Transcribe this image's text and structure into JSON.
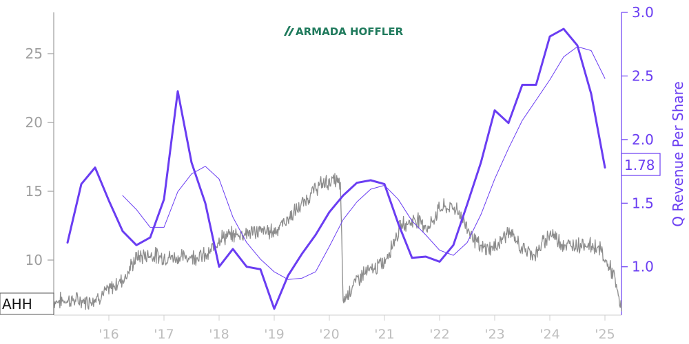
{
  "logo": {
    "text": "ARMADA HOFFLER",
    "color": "#1f7a5c"
  },
  "chart_data": {
    "type": "line",
    "ticker_label": "AHH",
    "x_ticks": [
      "'16",
      "'17",
      "'18",
      "'19",
      "'20",
      "'21",
      "'22",
      "'23",
      "'24",
      "'25"
    ],
    "x_tick_years": [
      2016,
      2017,
      2018,
      2019,
      2020,
      2021,
      2022,
      2023,
      2024,
      2025
    ],
    "xlim": [
      2015.0,
      2025.3
    ],
    "left_axis": {
      "ylim": [
        6.0,
        28.0
      ],
      "ticks": [
        "10",
        "15",
        "20",
        "25"
      ],
      "tick_values": [
        10,
        15,
        20,
        25
      ],
      "color": "#9e9e9e"
    },
    "right_axis": {
      "label": "Q Revenue Per Share",
      "ylim": [
        0.62,
        3.0
      ],
      "ticks": [
        "1.0",
        "1.5",
        "2.0",
        "2.5",
        "3.0"
      ],
      "tick_values": [
        1.0,
        1.5,
        2.0,
        2.5,
        3.0
      ],
      "color": "#6a3df2"
    },
    "last_value_label": "1.78",
    "series": [
      {
        "axis": "left",
        "color": "#8c8c8c",
        "style": "price",
        "x": [
          2015.0,
          2015.3,
          2015.6,
          2015.8,
          2016.0,
          2016.3,
          2016.5,
          2016.75,
          2017.0,
          2017.3,
          2017.6,
          2017.8,
          2018.0,
          2018.25,
          2018.5,
          2018.75,
          2019.0,
          2019.25,
          2019.5,
          2019.75,
          2019.9,
          2020.1,
          2020.2,
          2020.25,
          2020.4,
          2020.6,
          2020.8,
          2021.0,
          2021.3,
          2021.6,
          2021.8,
          2022.0,
          2022.3,
          2022.5,
          2022.75,
          2023.0,
          2023.25,
          2023.5,
          2023.75,
          2024.0,
          2024.3,
          2024.6,
          2024.9,
          2025.0,
          2025.15,
          2025.3
        ],
        "values": [
          7.0,
          7.1,
          7.0,
          7.3,
          7.8,
          8.8,
          10.2,
          10.4,
          10.2,
          10.2,
          10.3,
          10.3,
          11.6,
          11.8,
          12.0,
          12.1,
          12.1,
          13.0,
          14.0,
          15.2,
          15.6,
          15.8,
          15.5,
          7.0,
          8.0,
          9.0,
          9.3,
          9.9,
          12.5,
          13.0,
          12.3,
          13.8,
          13.8,
          12.4,
          10.8,
          10.9,
          12.1,
          10.8,
          10.4,
          12.0,
          11.0,
          11.2,
          10.9,
          10.0,
          9.0,
          6.3
        ]
      },
      {
        "axis": "right",
        "color": "#6a3df2",
        "style": "thick",
        "x": [
          2015.25,
          2015.5,
          2015.75,
          2016.0,
          2016.25,
          2016.5,
          2016.75,
          2017.0,
          2017.25,
          2017.5,
          2017.75,
          2018.0,
          2018.25,
          2018.5,
          2018.75,
          2019.0,
          2019.25,
          2019.5,
          2019.75,
          2020.0,
          2020.25,
          2020.5,
          2020.75,
          2021.0,
          2021.25,
          2021.5,
          2021.75,
          2022.0,
          2022.25,
          2022.5,
          2022.75,
          2023.0,
          2023.25,
          2023.5,
          2023.75,
          2024.0,
          2024.25,
          2024.5,
          2024.75,
          2025.0
        ],
        "values": [
          1.19,
          1.65,
          1.78,
          1.52,
          1.28,
          1.17,
          1.23,
          1.53,
          2.38,
          1.82,
          1.5,
          1.0,
          1.14,
          1.0,
          0.98,
          0.67,
          0.93,
          1.1,
          1.25,
          1.43,
          1.56,
          1.66,
          1.68,
          1.65,
          1.34,
          1.07,
          1.08,
          1.04,
          1.17,
          1.49,
          1.82,
          2.23,
          2.13,
          2.43,
          2.43,
          2.81,
          2.87,
          2.74,
          2.36,
          1.78
        ]
      },
      {
        "axis": "right",
        "color": "#6a3df2",
        "style": "thin",
        "x": [
          2016.25,
          2016.5,
          2016.75,
          2017.0,
          2017.25,
          2017.5,
          2017.75,
          2018.0,
          2018.25,
          2018.5,
          2018.75,
          2019.0,
          2019.25,
          2019.5,
          2019.75,
          2020.0,
          2020.25,
          2020.5,
          2020.75,
          2021.0,
          2021.25,
          2021.5,
          2021.75,
          2022.0,
          2022.25,
          2022.5,
          2022.75,
          2023.0,
          2023.25,
          2023.5,
          2023.75,
          2024.0,
          2024.25,
          2024.5,
          2024.75,
          2025.0
        ],
        "values": [
          1.56,
          1.45,
          1.31,
          1.31,
          1.59,
          1.73,
          1.79,
          1.69,
          1.39,
          1.19,
          1.06,
          0.96,
          0.9,
          0.91,
          0.96,
          1.16,
          1.37,
          1.51,
          1.61,
          1.64,
          1.53,
          1.36,
          1.25,
          1.13,
          1.09,
          1.19,
          1.41,
          1.69,
          1.93,
          2.15,
          2.31,
          2.47,
          2.65,
          2.73,
          2.7,
          2.48
        ]
      }
    ]
  }
}
